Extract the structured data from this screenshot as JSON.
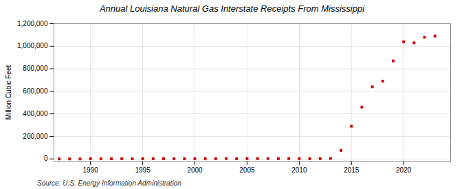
{
  "chart_data": {
    "type": "scatter",
    "title": "Annual Louisiana Natural Gas Interstate Receipts From Mississippi",
    "ylabel": "Million Cubic Feet",
    "source": "Source: U.S. Energy Information Administration",
    "color": "#cc0000",
    "marker": "square",
    "grid": true,
    "x": [
      1987,
      1988,
      1989,
      1990,
      1991,
      1992,
      1993,
      1994,
      1995,
      1996,
      1997,
      1998,
      1999,
      2000,
      2001,
      2002,
      2003,
      2004,
      2005,
      2006,
      2007,
      2008,
      2009,
      2010,
      2011,
      2012,
      2013,
      2014,
      2015,
      2016,
      2017,
      2018,
      2019,
      2020,
      2021,
      2022,
      2023
    ],
    "values": [
      0,
      0,
      0,
      1500,
      1000,
      1000,
      1500,
      1000,
      1500,
      1500,
      2000,
      1500,
      1500,
      1500,
      2500,
      2000,
      2500,
      2000,
      3000,
      2500,
      3000,
      2500,
      3000,
      2500,
      2000,
      2500,
      4000,
      75000,
      290000,
      460000,
      640000,
      690000,
      870000,
      1040000,
      1030000,
      1080000,
      1090000
    ],
    "xlim": [
      1986.5,
      2024.5
    ],
    "xticks": [
      1990,
      1995,
      2000,
      2005,
      2010,
      2015,
      2020
    ],
    "ylim": [
      -20000,
      1200000
    ],
    "yticks": [
      0,
      {
        "value": 200000,
        "label": "200,000"
      },
      {
        "value": 400000,
        "label": "400,000"
      },
      {
        "value": 600000,
        "label": "600,000"
      },
      {
        "value": 800000,
        "label": "800,000"
      },
      {
        "value": 1000000,
        "label": "1,000,000"
      },
      {
        "value": 1200000,
        "label": "1,200,000"
      }
    ]
  }
}
